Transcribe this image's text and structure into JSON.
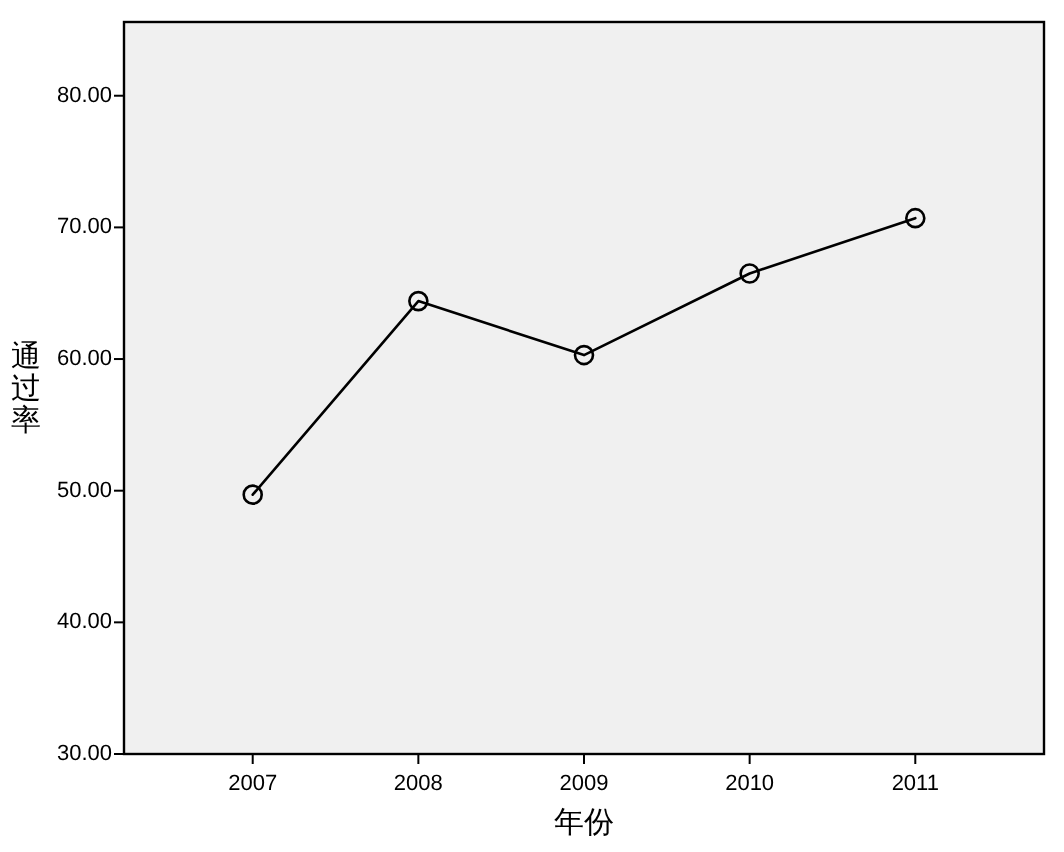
{
  "chart_data": {
    "type": "line",
    "xlabel": "年份",
    "ylabel": "通过率",
    "categories": [
      "2007",
      "2008",
      "2009",
      "2010",
      "2011"
    ],
    "series": [
      {
        "color": "#000000",
        "values": [
          49.7,
          64.4,
          60.3,
          66.5,
          70.7
        ]
      }
    ],
    "ylim": [
      30,
      85.6
    ],
    "yticks": [
      {
        "value": 30,
        "label": "30.00"
      },
      {
        "value": 40,
        "label": "40.00"
      },
      {
        "value": 50,
        "label": "50.00"
      },
      {
        "value": 60,
        "label": "60.00"
      },
      {
        "value": 70,
        "label": "70.00"
      },
      {
        "value": 80,
        "label": "80.00"
      }
    ],
    "marker": "circle",
    "line_style": "solid"
  }
}
